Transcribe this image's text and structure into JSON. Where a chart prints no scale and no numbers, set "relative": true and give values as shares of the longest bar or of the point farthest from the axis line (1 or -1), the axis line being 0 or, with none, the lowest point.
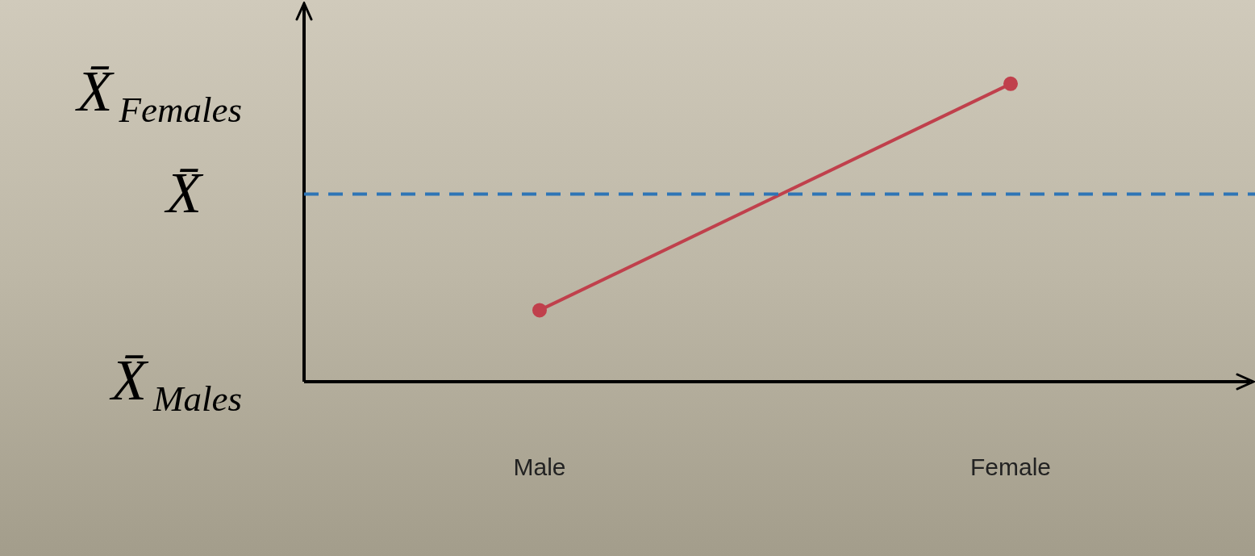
{
  "chart_data": {
    "type": "line",
    "relative": true,
    "categories": [
      "Male",
      "Female"
    ],
    "series": [
      {
        "color": "#c0404c",
        "values": [
          0.24,
          1
        ]
      }
    ],
    "marker": "circle",
    "line_style": "solid",
    "legend": false,
    "ref_lines": [
      {
        "axis": "y",
        "value": 0.63,
        "label": "X̄",
        "color": "#2e75b6",
        "line_style": "dashed"
      }
    ],
    "annotations": [
      "X̄$_{Females}$",
      "X̄$_{Males}$"
    ]
  }
}
